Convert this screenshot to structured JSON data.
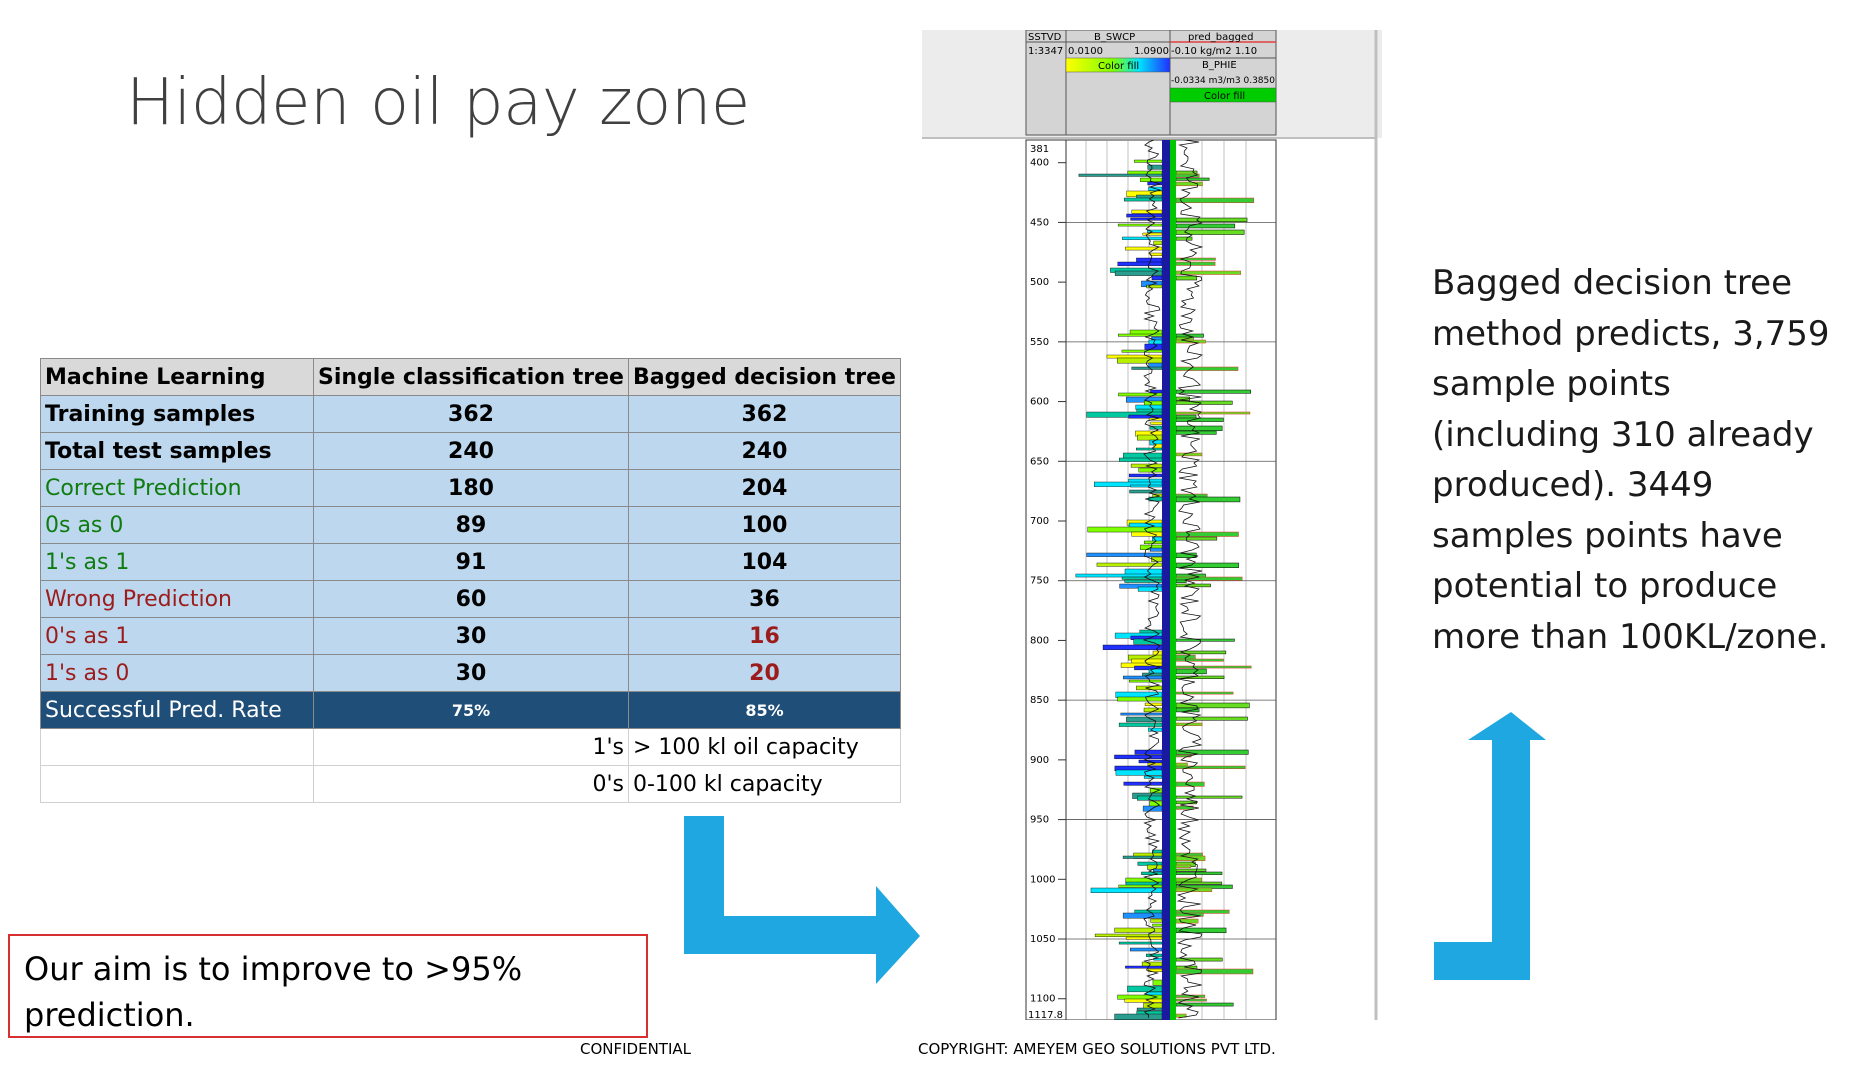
{
  "slide": {
    "title": "Hidden oil pay zone",
    "aim_text": "Our aim is to improve to >95% prediction.",
    "confidential": "CONFIDENTIAL",
    "copyright": "COPYRIGHT: AMEYEM GEO SOLUTIONS PVT LTD.",
    "right_text": "Bagged decision tree method predicts, 3,759 sample points (including 310 already produced). 3449 samples points have potential to produce more than 100KL/zone."
  },
  "table": {
    "headers": [
      "Machine Learning",
      "Single classification tree",
      "Bagged decision tree"
    ],
    "rows": [
      {
        "label": "Training samples",
        "single": "362",
        "bagged": "362"
      },
      {
        "label": "Total test samples",
        "single": "240",
        "bagged": "240"
      },
      {
        "label": "Correct Prediction",
        "single": "180",
        "bagged": "204"
      },
      {
        "label": "0s as 0",
        "single": "89",
        "bagged": "100"
      },
      {
        "label": "1's as 1",
        "single": "91",
        "bagged": "104"
      },
      {
        "label": "Wrong Prediction",
        "single": "60",
        "bagged": "36"
      },
      {
        "label": "0's as 1",
        "single": "30",
        "bagged": "16"
      },
      {
        "label": "1's as 0",
        "single": "30",
        "bagged": "20"
      },
      {
        "label": "Successful Pred. Rate",
        "single": "75%",
        "bagged": "85%"
      }
    ],
    "legend": [
      {
        "code": "1's",
        "meaning": "> 100 kl oil capacity"
      },
      {
        "code": "0's",
        "meaning": "0-100 kl capacity"
      }
    ]
  },
  "log": {
    "header": {
      "depth_label": "SSTVD",
      "scale": "1:3347",
      "track1_name": "B_SWCP",
      "track1_min": "0.0100",
      "track1_max": "1.0900",
      "track1_fill": "Color fill",
      "track2_name": "pred_bagged",
      "track2_range": "-0.10  kg/m2   1.10",
      "track3_name": "B_PHIE",
      "track3_range": "-0.0334 m3/m3 0.3850",
      "track3_fill": "Color fill"
    },
    "depth_top": "381",
    "depth_bottom": "1117.8",
    "depth_ticks": [
      "400",
      "450",
      "500",
      "550",
      "600",
      "650",
      "700",
      "750",
      "800",
      "850",
      "900",
      "950",
      "1000",
      "1050",
      "1100"
    ]
  },
  "colors": {
    "table_header": "#d9d9d9",
    "table_row": "#bdd7ee",
    "table_dark": "#1f4e79",
    "green_text": "#107c10",
    "red_text": "#9c1c1c",
    "arrow": "#1ea7e1",
    "aim_border": "#d63030"
  }
}
